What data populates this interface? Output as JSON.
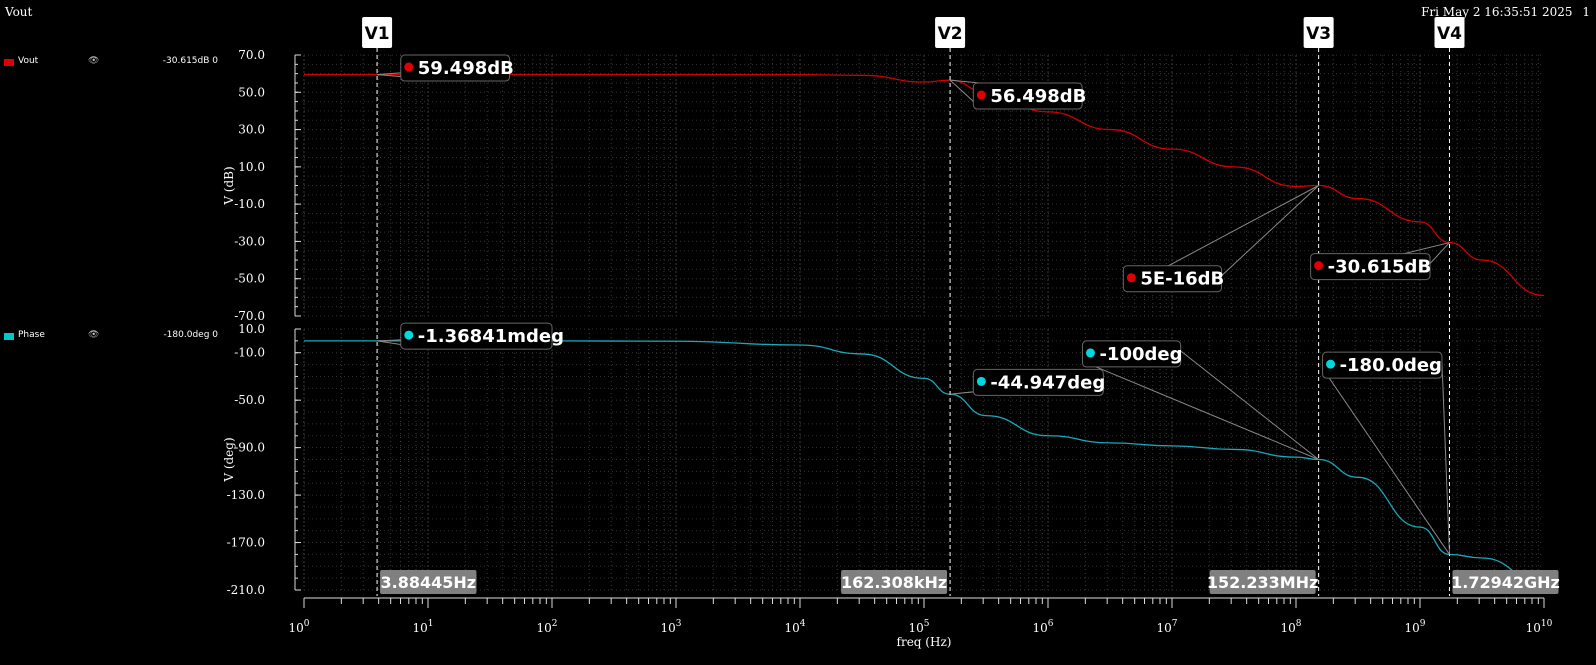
{
  "window": {
    "title": "Vout",
    "timestamp": "Fri May 2 16:35:51 2025",
    "page_number": "1"
  },
  "legend": [
    {
      "name": "Vout",
      "eye_icon": "eye-icon",
      "value": "-30.615dB 0",
      "color": "#e00000"
    },
    {
      "name": "Phase",
      "eye_icon": "eye-icon",
      "value": "-180.0deg 0",
      "color": "#00c8c8"
    }
  ],
  "chart_data": [
    {
      "type": "line",
      "xscale": "log",
      "xlim": [
        1,
        10000000000
      ],
      "xlabel": "freq (Hz)",
      "ylabel": "V (dB)",
      "ylim": [
        -70,
        70
      ],
      "yticks": [
        "70.0",
        "50.0",
        "30.0",
        "10.0",
        "-10.0",
        "-30.0",
        "-50.0",
        "-70.0"
      ],
      "grid": true,
      "series": [
        {
          "name": "Vout",
          "color": "#d00000",
          "x": [
            1,
            10,
            100,
            1000,
            10000,
            31600,
            100000,
            162308,
            316000,
            1000000,
            3160000,
            10000000,
            31600000,
            100000000,
            152233000,
            316000000,
            1000000000,
            1729420000,
            3160000000,
            10000000000
          ],
          "y": [
            59.5,
            59.5,
            59.5,
            59.5,
            59.46,
            59.1,
            55.5,
            56.5,
            50.0,
            39.5,
            30.0,
            19.5,
            10.0,
            -0.5,
            0,
            -7.0,
            -19.5,
            -30.615,
            -40.0,
            -59.0
          ]
        }
      ]
    },
    {
      "type": "line",
      "xscale": "log",
      "xlim": [
        1,
        10000000000
      ],
      "xlabel": "freq (Hz)",
      "ylabel": "V (deg)",
      "ylim": [
        -210,
        10
      ],
      "yticks": [
        "10.0",
        "-10.0",
        "-50.0",
        "-90.0",
        "-130.0",
        "-170.0",
        "-210.0"
      ],
      "grid": true,
      "series": [
        {
          "name": "Phase",
          "color": "#1aa8b8",
          "x": [
            1,
            10,
            100,
            1000,
            10000,
            31600,
            100000,
            162308,
            316000,
            1000000,
            3160000,
            10000000,
            31600000,
            100000000,
            152233000,
            316000000,
            1000000000,
            1729420000,
            3160000000,
            10000000000
          ],
          "y": [
            -0.0013,
            -0.0013,
            -0.01,
            -0.3,
            -3.5,
            -11.0,
            -31.6,
            -44.947,
            -63.0,
            -80.0,
            -86.0,
            -88.5,
            -91.5,
            -98.0,
            -100.0,
            -115.0,
            -157.0,
            -180.0,
            -183.0,
            -205.0
          ]
        }
      ]
    }
  ],
  "cursors": [
    {
      "label": "V1",
      "freq": 3.88445,
      "freq_label": "3.88445Hz"
    },
    {
      "label": "V2",
      "freq": 162308,
      "freq_label": "162.308kHz"
    },
    {
      "label": "V3",
      "freq": 152233000,
      "freq_label": "152.233MHz"
    },
    {
      "label": "V4",
      "freq": 1729420000,
      "freq_label": "1.72942GHz"
    }
  ],
  "markers": [
    {
      "panel": 0,
      "text": "59.498dB",
      "color": "#e00000",
      "x": 7.0,
      "y": 63.0,
      "target_freq": 3.88445,
      "target_y": 59.5
    },
    {
      "panel": 0,
      "text": "56.498dB",
      "color": "#e00000",
      "x": 290000,
      "y": 48.0,
      "target_freq": 162308,
      "target_y": 56.5
    },
    {
      "panel": 0,
      "text": "5E-16dB",
      "color": "#e00000",
      "x": 4700000,
      "y": -50.0,
      "target_freq": 152233000,
      "target_y": 0
    },
    {
      "panel": 0,
      "text": "-30.615dB",
      "color": "#e00000",
      "x": 152233000,
      "y": -43.5,
      "target_freq": 1729420000,
      "target_y": -30.615
    },
    {
      "panel": 1,
      "text": "-1.36841mdeg",
      "color": "#00d8e0",
      "x": 7.0,
      "y": 4.0,
      "target_freq": 3.88445,
      "target_y": -0.0013
    },
    {
      "panel": 1,
      "text": "-44.947deg",
      "color": "#00d8e0",
      "x": 290000,
      "y": -35.0,
      "target_freq": 162308,
      "target_y": -44.947
    },
    {
      "panel": 1,
      "text": "-100deg",
      "color": "#00d8e0",
      "x": 2200000,
      "y": -11.0,
      "target_freq": 152233000,
      "target_y": -100.0
    },
    {
      "panel": 1,
      "text": "-180.0deg",
      "color": "#00d8e0",
      "x": 190000000,
      "y": -20.5,
      "target_freq": 1729420000,
      "target_y": -180.0
    }
  ]
}
